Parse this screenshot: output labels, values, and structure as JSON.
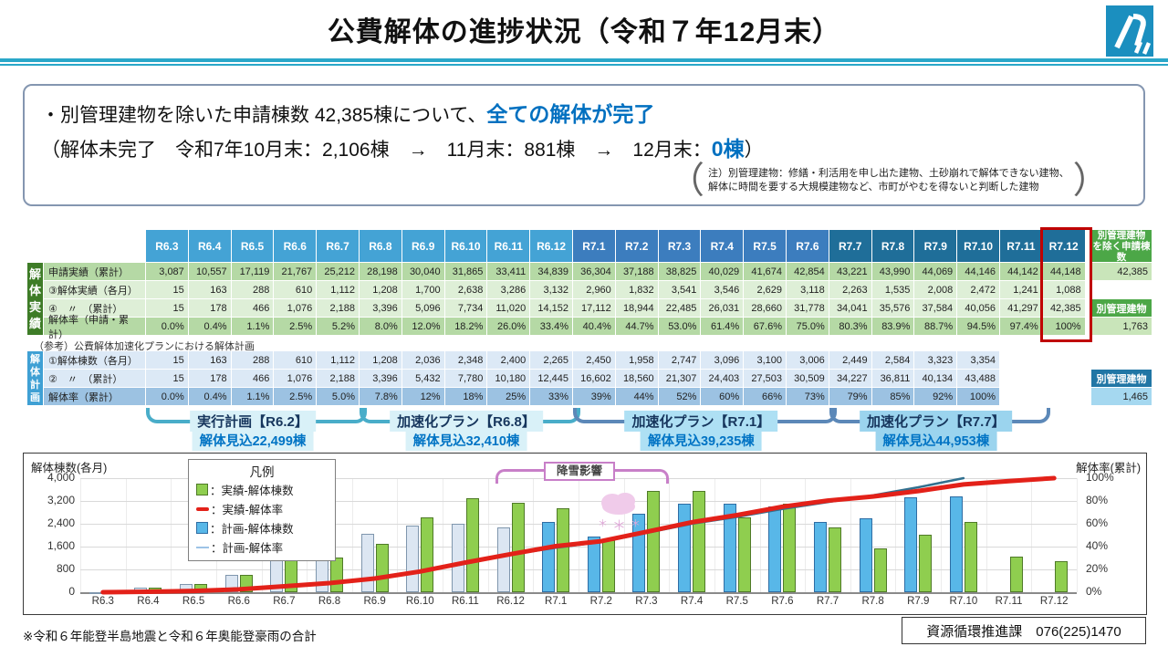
{
  "header": {
    "title": "公費解体の進捗状況（令和７年12月末）",
    "logo_name": "石川県ロゴ"
  },
  "summary": {
    "line1_pre": "・別管理建物を除いた申請棟数 42,385棟について、",
    "line1_hl": "全ての解体が完了",
    "line2_pre": "（解体未完了　令和7年10月末：2,106棟　→　11月末：881棟　→　12月末：",
    "line2_hl": "0棟",
    "line2_post": "）",
    "note_line1": "注）別管理建物：修繕・利活用を申し出た建物、土砂崩れで解体できない建物、",
    "note_line2": "解体に時間を要する大規模建物など、市町がやむを得ないと判断した建物",
    "note_open": "（",
    "note_close": "）"
  },
  "table": {
    "columns": [
      "R6.3",
      "R6.4",
      "R6.5",
      "R6.6",
      "R6.7",
      "R6.8",
      "R6.9",
      "R6.10",
      "R6.11",
      "R6.12",
      "R7.1",
      "R7.2",
      "R7.3",
      "R7.4",
      "R7.5",
      "R7.6",
      "R7.7",
      "R7.8",
      "R7.9",
      "R7.10",
      "R7.11",
      "R7.12"
    ],
    "col_group_colors": [
      "#44a3d5",
      "#3c7dbe",
      "#1f6e99"
    ],
    "col_group_ends": [
      9,
      15,
      21
    ],
    "highlight_column": "R7.12",
    "actual_side_label": "解体実績",
    "actual_rows": [
      {
        "label": "申請実績（累計）",
        "bg": "#b5d9a5",
        "values": [
          "3,087",
          "10,557",
          "17,119",
          "21,767",
          "25,212",
          "28,198",
          "30,040",
          "31,865",
          "33,411",
          "34,839",
          "36,304",
          "37,188",
          "38,825",
          "40,029",
          "41,674",
          "42,854",
          "43,221",
          "43,990",
          "44,069",
          "44,146",
          "44,142",
          "44,148"
        ]
      },
      {
        "label": "③解体実績（各月）",
        "bg": "#deefd7",
        "values": [
          "15",
          "163",
          "288",
          "610",
          "1,112",
          "1,208",
          "1,700",
          "2,638",
          "3,286",
          "3,132",
          "2,960",
          "1,832",
          "3,541",
          "3,546",
          "2,629",
          "3,118",
          "2,263",
          "1,535",
          "2,008",
          "2,472",
          "1,241",
          "1,088"
        ]
      },
      {
        "label": "④　〃　（累計）",
        "bg": "#deefd7",
        "values": [
          "15",
          "178",
          "466",
          "1,076",
          "2,188",
          "3,396",
          "5,096",
          "7,734",
          "11,020",
          "14,152",
          "17,112",
          "18,944",
          "22,485",
          "26,031",
          "28,660",
          "31,778",
          "34,041",
          "35,576",
          "37,584",
          "40,056",
          "41,297",
          "42,385"
        ]
      },
      {
        "label": "解体率（申請・累計）",
        "bg": "#b5d9a5",
        "values": [
          "0.0%",
          "0.4%",
          "1.1%",
          "2.5%",
          "5.2%",
          "8.0%",
          "12.0%",
          "18.2%",
          "26.0%",
          "33.4%",
          "40.4%",
          "44.7%",
          "53.0%",
          "61.4%",
          "67.6%",
          "75.0%",
          "80.3%",
          "83.9%",
          "88.7%",
          "94.5%",
          "97.4%",
          "100%"
        ]
      }
    ],
    "plan_caption": "（参考）公費解体加速化プランにおける解体計画",
    "plan_side_label": "解体計画",
    "plan_rows": [
      {
        "label": "①解体棟数（各月）",
        "bg": "#dce9f6",
        "values": [
          "15",
          "163",
          "288",
          "610",
          "1,112",
          "1,208",
          "2,036",
          "2,348",
          "2,400",
          "2,265",
          "2,450",
          "1,958",
          "2,747",
          "3,096",
          "3,100",
          "3,006",
          "2,449",
          "2,584",
          "3,323",
          "3,354",
          "",
          ""
        ]
      },
      {
        "label": "②　〃　（累計）",
        "bg": "#dce9f6",
        "values": [
          "15",
          "178",
          "466",
          "1,076",
          "2,188",
          "3,396",
          "5,432",
          "7,780",
          "10,180",
          "12,445",
          "16,602",
          "18,560",
          "21,307",
          "24,403",
          "27,503",
          "30,509",
          "34,227",
          "36,811",
          "40,134",
          "43,488",
          "",
          ""
        ]
      },
      {
        "label": "解体率（累計）",
        "bg": "#9cc2e2",
        "values": [
          "0.0%",
          "0.4%",
          "1.1%",
          "2.5%",
          "5.0%",
          "7.8%",
          "12%",
          "18%",
          "25%",
          "33%",
          "39%",
          "44%",
          "52%",
          "60%",
          "66%",
          "73%",
          "79%",
          "85%",
          "92%",
          "100%",
          "",
          ""
        ]
      }
    ],
    "side": {
      "excl_header_l1": "別管理建物",
      "excl_header_l2": "を除く申請棟数",
      "excl_value": "42,385",
      "actual_header": "別管理建物",
      "actual_value": "1,763",
      "plan_header": "別管理建物",
      "plan_value": "1,465",
      "green_header_bg": "#4ca747",
      "green_value_bg": "#c9e5ba",
      "blue_header_bg": "#2176a5",
      "blue_value_bg": "#a5d8f0"
    }
  },
  "braces": [
    {
      "label": "実行計画【R6.2】",
      "sub": "解体見込22,499棟",
      "from": 0,
      "to": 4,
      "line": "#49adc9",
      "bg": "#d9f1f8"
    },
    {
      "label": "加速化プラン【R6.8】",
      "sub": "解体見込32,410棟",
      "from": 5,
      "to": 9,
      "line": "#49adc9",
      "bg": "#d9f1f8"
    },
    {
      "label": "加速化プラン【R7.1】",
      "sub": "解体見込39,235棟",
      "from": 10,
      "to": 15,
      "line": "#5c88b8",
      "bg": "#aee0f4"
    },
    {
      "label": "加速化プラン【R7.7】",
      "sub": "解体見込44,953棟",
      "from": 16,
      "to": 20,
      "line": "#5c88b8",
      "bg": "#9bd4ee"
    }
  ],
  "chart_data": {
    "type": "combo",
    "categories": [
      "R6.3",
      "R6.4",
      "R6.5",
      "R6.6",
      "R6.7",
      "R6.8",
      "R6.9",
      "R6.10",
      "R6.11",
      "R6.12",
      "R7.1",
      "R7.2",
      "R7.3",
      "R7.4",
      "R7.5",
      "R7.6",
      "R7.7",
      "R7.8",
      "R7.9",
      "R7.10",
      "R7.11",
      "R7.12"
    ],
    "series": [
      {
        "name": "計画-解体棟数",
        "type": "bar",
        "color_early": "#dce6f2",
        "stroke_early": "#7f96ad",
        "color_late": "#58b7e8",
        "stroke_late": "#2e6da4",
        "values": [
          15,
          163,
          288,
          610,
          1112,
          1208,
          2036,
          2348,
          2400,
          2265,
          2450,
          1958,
          2747,
          3096,
          3100,
          3006,
          2449,
          2584,
          3323,
          3354,
          null,
          null
        ]
      },
      {
        "name": "実績-解体棟数",
        "type": "bar",
        "color": "#8fce4f",
        "stroke": "#4f7a28",
        "values": [
          15,
          163,
          288,
          610,
          1112,
          1208,
          1700,
          2638,
          3286,
          3132,
          2960,
          1832,
          3541,
          3546,
          2629,
          3118,
          2263,
          1535,
          2008,
          2472,
          1241,
          1088
        ]
      },
      {
        "name": "計画-解体率",
        "type": "line",
        "color": "#31708f",
        "width": 2.5,
        "values": [
          0,
          0.4,
          1.1,
          2.5,
          5.0,
          7.8,
          12,
          18,
          25,
          33,
          39,
          44,
          52,
          60,
          66,
          73,
          79,
          85,
          92,
          100,
          null,
          null
        ]
      },
      {
        "name": "実績-解体率",
        "type": "line",
        "color": "#e32119",
        "width": 5,
        "values": [
          0,
          0.4,
          1.1,
          2.5,
          5.2,
          8.0,
          12.0,
          18.2,
          26.0,
          33.4,
          40.4,
          44.7,
          53.0,
          61.4,
          67.6,
          75.0,
          80.3,
          83.9,
          88.7,
          94.5,
          97.4,
          100
        ]
      }
    ],
    "ylabel_left": "解体棟数(各月)",
    "ylabel_right": "解体率(累計)",
    "ylim_left": [
      0,
      4000
    ],
    "yticks_left": [
      "0",
      "800",
      "1,600",
      "2,400",
      "3,200",
      "4,000"
    ],
    "ylim_right": [
      0,
      100
    ],
    "yticks_right": [
      "0%",
      "20%",
      "40%",
      "60%",
      "80%",
      "100%"
    ],
    "grid": true,
    "legend": {
      "title": "凡例",
      "position": "top-left",
      "items": [
        {
          "marker": "bar-actual",
          "label": "：実績-解体棟数"
        },
        {
          "marker": "line-actual",
          "label": "：実績-解体率"
        },
        {
          "marker": "bar-plan",
          "label": "：計画-解体棟数"
        },
        {
          "marker": "line-plan",
          "label": "：計画-解体率"
        }
      ]
    },
    "annotation": {
      "label": "降雪影響",
      "from_index": 9,
      "to_index": 12,
      "color": "#c87fc8",
      "icon": "snow-cloud-icon"
    }
  },
  "footer": {
    "footnote": "※令和６年能登半島地震と令和６年奥能登豪雨の合計",
    "contact": "資源循環推進課　076(225)1470"
  }
}
